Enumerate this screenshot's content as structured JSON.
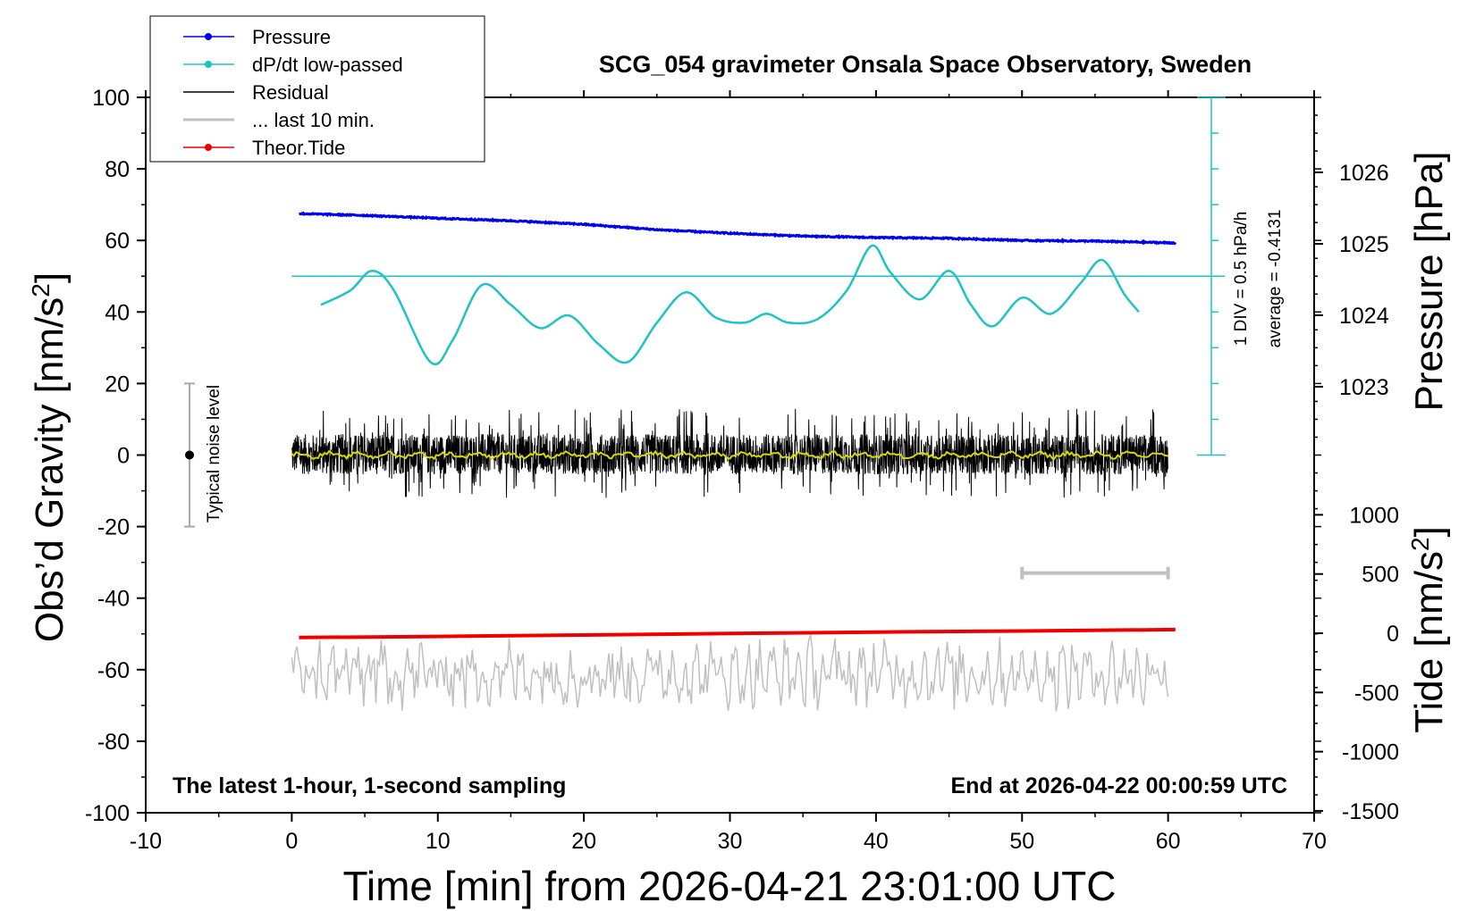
{
  "chart_data": {
    "type": "line",
    "title": "SCG_054 gravimeter Onsala Space Observatory, Sweden",
    "xlabel": "Time [min] from 2026-04-21 23:01:00 UTC",
    "ylabel_left": "Obs’d Gravity [nm/s²]",
    "ylabel_right_pressure": "Pressure [hPa]",
    "ylabel_right_tide": "Tide [nm/s²]",
    "xlim": [
      -10,
      70
    ],
    "ylim": [
      -100,
      100
    ],
    "x_ticks": [
      "-10",
      "0",
      "10",
      "20",
      "30",
      "40",
      "50",
      "60",
      "70"
    ],
    "y_ticks": [
      "100",
      "80",
      "60",
      "40",
      "20",
      "0",
      "-20",
      "-40",
      "-60",
      "-80",
      "-100"
    ],
    "pressure_ticks": [
      "1026",
      "1025",
      "1024",
      "1023"
    ],
    "tide_ticks": [
      "1000",
      "500",
      "0",
      "-500",
      "-1000",
      "-1500"
    ],
    "colors": {
      "pressure": "#0000ee",
      "dpdt": "#1fc3c3",
      "residual": "#000000",
      "residual_smooth": "#d8d800",
      "last10": "#c0c0c0",
      "tide": "#ee0000"
    },
    "legend": {
      "placement": "top-left",
      "entries": [
        {
          "label": "Pressure",
          "color": "#0000ee",
          "marker": true
        },
        {
          "label": "dP/dt low-passed",
          "color": "#1fc3c3",
          "marker": true
        },
        {
          "label": "Residual",
          "color": "#000000",
          "marker": false
        },
        {
          "label": "... last 10 min.",
          "color": "#c0c0c0",
          "marker": false
        },
        {
          "label": "Theor.Tide",
          "color": "#ee0000",
          "marker": true
        }
      ]
    },
    "series": [
      {
        "name": "Pressure",
        "x": [
          0.5,
          5,
          10,
          15,
          20,
          25,
          30,
          35,
          40,
          45,
          50,
          55,
          60.5
        ],
        "y": [
          67.5,
          67.0,
          66.2,
          65.5,
          64.5,
          63.0,
          62.0,
          61.2,
          60.8,
          60.6,
          60.0,
          59.8,
          59.3
        ]
      },
      {
        "name": "dP/dt low-passed",
        "x": [
          2,
          4,
          5.5,
          7,
          9.5,
          11,
          13,
          15,
          17,
          19,
          21,
          23,
          25,
          27,
          29,
          31,
          32.5,
          34,
          36,
          38,
          39.7,
          41,
          43,
          45,
          46.5,
          48,
          50,
          52,
          54,
          55.5,
          57,
          58
        ],
        "y": [
          42,
          46,
          51.5,
          46,
          26,
          32,
          47.5,
          42,
          35.5,
          39,
          31,
          26,
          37,
          45.5,
          38.5,
          37,
          39.5,
          37,
          38,
          46,
          58.5,
          51,
          43.5,
          51.5,
          42,
          36,
          44,
          39.5,
          48,
          54.5,
          45,
          40
        ]
      },
      {
        "name": "Residual",
        "x": [
          0,
          60
        ],
        "y": [
          0,
          0
        ]
      },
      {
        "name": "Theor.Tide",
        "x": [
          0.5,
          10,
          20,
          30,
          40,
          50,
          60.5
        ],
        "y": [
          -51.0,
          -50.7,
          -50.3,
          -49.9,
          -49.5,
          -49.2,
          -48.8
        ]
      }
    ],
    "residual_envelope": {
      "min": -12,
      "max": 13
    },
    "last10_series": {
      "x_range": [
        0,
        60
      ],
      "y_center": -61,
      "y_range": [
        -73,
        -48
      ]
    },
    "dpdt_reference": {
      "y": 50,
      "label_div": "1 DIV = 0.5 hPa/h",
      "label_avg": "average = -0.4131"
    },
    "noise_bar": {
      "x": -7,
      "y_center": 0,
      "y_half_range": 20,
      "label": "Typical noise level"
    },
    "last10_bar": {
      "x_from": 50,
      "x_to": 60,
      "y": -33
    },
    "notes": {
      "left": "The latest 1-hour, 1-second sampling",
      "right": "End at 2026-04-22 00:00:59 UTC"
    }
  }
}
